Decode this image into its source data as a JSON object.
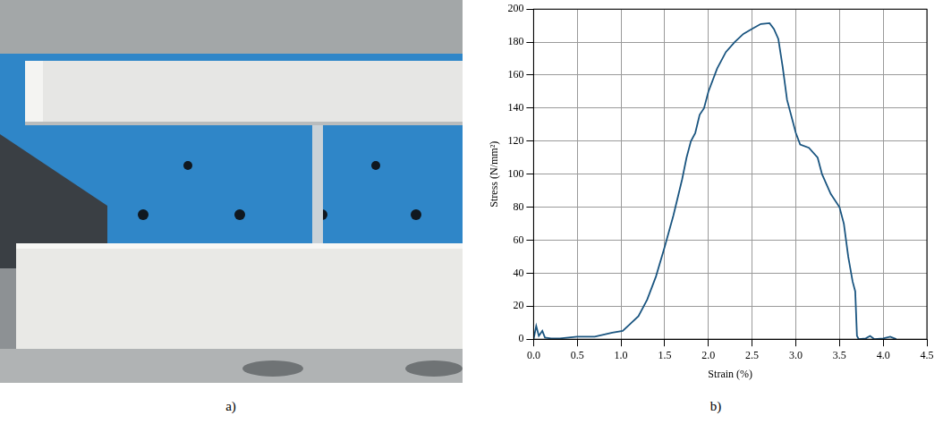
{
  "figure": {
    "captions": [
      "a)",
      "b)"
    ]
  },
  "chart_data": {
    "type": "line",
    "x_label": "Strain (%)",
    "y_label": "Stress (N/mm²)",
    "color": "#1a5580",
    "grid": true,
    "xlim": [
      0,
      4.5
    ],
    "xticks": [
      {
        "value": 0,
        "label": "0.0"
      },
      {
        "value": 0.5,
        "label": "0.5"
      },
      {
        "value": 1,
        "label": "1.0"
      },
      {
        "value": 1.5,
        "label": "1.5"
      },
      {
        "value": 2,
        "label": "2.0"
      },
      {
        "value": 2.5,
        "label": "2.5"
      },
      {
        "value": 3,
        "label": "3.0"
      },
      {
        "value": 3.5,
        "label": "3.5"
      },
      {
        "value": 4,
        "label": "4.0"
      },
      {
        "value": 4.5,
        "label": "4.5"
      }
    ],
    "ylim": [
      0,
      200
    ],
    "yticks": [
      0,
      20,
      40,
      60,
      80,
      100,
      120,
      140,
      160,
      180,
      200
    ],
    "x": [
      0,
      0.03,
      0.06,
      0.1,
      0.13,
      0.2,
      0.3,
      0.5,
      0.7,
      0.9,
      1.02,
      1.1,
      1.2,
      1.3,
      1.4,
      1.5,
      1.6,
      1.7,
      1.75,
      1.8,
      1.85,
      1.9,
      1.95,
      2.0,
      2.1,
      2.2,
      2.3,
      2.4,
      2.5,
      2.6,
      2.7,
      2.75,
      2.8,
      2.85,
      2.9,
      3.0,
      3.05,
      3.15,
      3.25,
      3.3,
      3.4,
      3.5,
      3.55,
      3.6,
      3.65,
      3.68,
      3.7,
      3.72,
      3.8,
      3.85,
      3.9,
      4.0,
      4.08,
      4.15
    ],
    "values": [
      0,
      8,
      2,
      5,
      1,
      0.5,
      0.5,
      1.5,
      1.5,
      4,
      5,
      9,
      14,
      24,
      38,
      56,
      75,
      97,
      110,
      120,
      125,
      136,
      140,
      150,
      164,
      174,
      180,
      185,
      188,
      191,
      191.5,
      188,
      182,
      165,
      145,
      125,
      118,
      116,
      110,
      100,
      88,
      80,
      70,
      50,
      35,
      29,
      2,
      0,
      0.5,
      2,
      0,
      0.5,
      1.5,
      0
    ]
  }
}
